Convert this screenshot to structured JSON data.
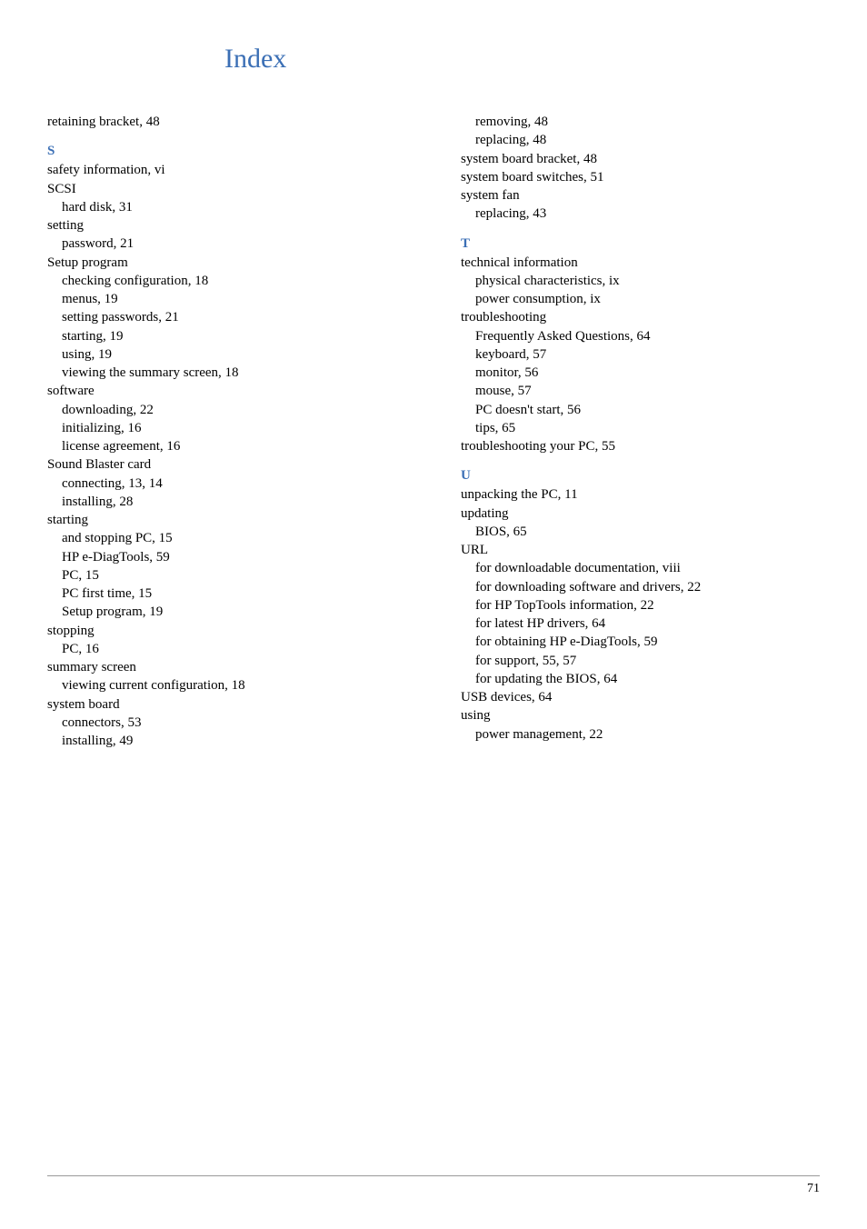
{
  "title": "Index",
  "page_number": "71",
  "left_col": {
    "top": [
      {
        "text": "retaining bracket, 48",
        "sub": false
      }
    ],
    "S": {
      "letter": "S",
      "entries": [
        {
          "text": "safety information, vi",
          "sub": false
        },
        {
          "text": "SCSI",
          "sub": false
        },
        {
          "text": "hard disk, 31",
          "sub": true
        },
        {
          "text": "setting",
          "sub": false
        },
        {
          "text": "password, 21",
          "sub": true
        },
        {
          "text": "Setup program",
          "sub": false
        },
        {
          "text": "checking configuration, 18",
          "sub": true
        },
        {
          "text": "menus, 19",
          "sub": true
        },
        {
          "text": "setting passwords, 21",
          "sub": true
        },
        {
          "text": "starting, 19",
          "sub": true
        },
        {
          "text": "using, 19",
          "sub": true
        },
        {
          "text": "viewing the summary screen, 18",
          "sub": true
        },
        {
          "text": "software",
          "sub": false
        },
        {
          "text": "downloading, 22",
          "sub": true
        },
        {
          "text": "initializing, 16",
          "sub": true
        },
        {
          "text": "license agreement, 16",
          "sub": true
        },
        {
          "text": "Sound Blaster card",
          "sub": false
        },
        {
          "text": "connecting, 13, 14",
          "sub": true
        },
        {
          "text": "installing, 28",
          "sub": true
        },
        {
          "text": "starting",
          "sub": false
        },
        {
          "text": "and stopping PC, 15",
          "sub": true
        },
        {
          "text": "HP e-DiagTools, 59",
          "sub": true
        },
        {
          "text": "PC, 15",
          "sub": true
        },
        {
          "text": "PC first time, 15",
          "sub": true
        },
        {
          "text": "Setup program, 19",
          "sub": true
        },
        {
          "text": "stopping",
          "sub": false
        },
        {
          "text": "PC, 16",
          "sub": true
        },
        {
          "text": "summary screen",
          "sub": false
        },
        {
          "text": "viewing current configuration, 18",
          "sub": true
        },
        {
          "text": "system board",
          "sub": false
        },
        {
          "text": "connectors, 53",
          "sub": true
        },
        {
          "text": "installing, 49",
          "sub": true
        }
      ]
    }
  },
  "right_col": {
    "top": [
      {
        "text": "removing, 48",
        "sub": true
      },
      {
        "text": "replacing, 48",
        "sub": true
      },
      {
        "text": "system board bracket, 48",
        "sub": false
      },
      {
        "text": "system board switches, 51",
        "sub": false
      },
      {
        "text": "system fan",
        "sub": false
      },
      {
        "text": "replacing, 43",
        "sub": true
      }
    ],
    "T": {
      "letter": "T",
      "entries": [
        {
          "text": "technical information",
          "sub": false
        },
        {
          "text": "physical characteristics, ix",
          "sub": true
        },
        {
          "text": "power consumption, ix",
          "sub": true
        },
        {
          "text": "troubleshooting",
          "sub": false
        },
        {
          "text": "Frequently Asked Questions, 64",
          "sub": true
        },
        {
          "text": "keyboard, 57",
          "sub": true
        },
        {
          "text": "monitor, 56",
          "sub": true
        },
        {
          "text": "mouse, 57",
          "sub": true
        },
        {
          "text": "PC doesn't start, 56",
          "sub": true
        },
        {
          "text": "tips, 65",
          "sub": true
        },
        {
          "text": "troubleshooting your PC, 55",
          "sub": false
        }
      ]
    },
    "U": {
      "letter": "U",
      "entries": [
        {
          "text": "unpacking the PC, 11",
          "sub": false
        },
        {
          "text": "updating",
          "sub": false
        },
        {
          "text": "BIOS, 65",
          "sub": true
        },
        {
          "text": "URL",
          "sub": false
        },
        {
          "text": "for downloadable documentation, viii",
          "sub": true
        },
        {
          "text": "for downloading software and drivers, 22",
          "sub": true
        },
        {
          "text": "for HP TopTools information, 22",
          "sub": true
        },
        {
          "text": "for latest HP drivers, 64",
          "sub": true
        },
        {
          "text": "for obtaining HP e-DiagTools, 59",
          "sub": true
        },
        {
          "text": "for support, 55, 57",
          "sub": true
        },
        {
          "text": "for updating the BIOS, 64",
          "sub": true
        },
        {
          "text": "USB devices, 64",
          "sub": false
        },
        {
          "text": "using",
          "sub": false
        },
        {
          "text": "power management, 22",
          "sub": true
        }
      ]
    }
  }
}
